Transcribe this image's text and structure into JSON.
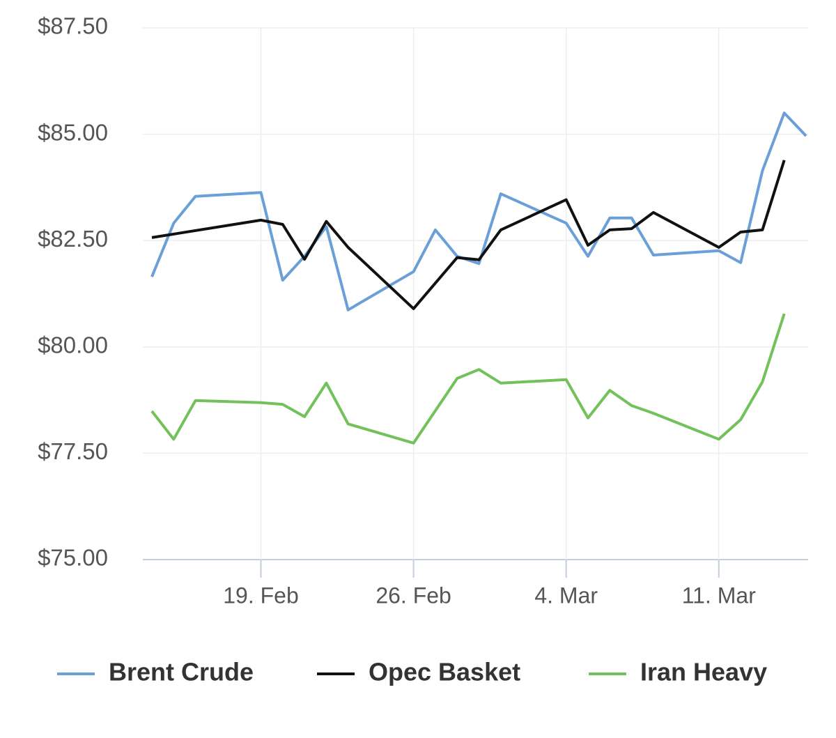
{
  "chart_data": {
    "type": "line",
    "ylim": [
      75,
      87.5
    ],
    "yticks": [
      {
        "value": 75,
        "label": "$75.00"
      },
      {
        "value": 77.5,
        "label": "$77.50"
      },
      {
        "value": 80,
        "label": "$80.00"
      },
      {
        "value": 82.5,
        "label": "$82.50"
      },
      {
        "value": 85,
        "label": "$85.00"
      },
      {
        "value": 87.5,
        "label": "$87.50"
      }
    ],
    "xticks": [
      "19. Feb",
      "26. Feb",
      "4. Mar",
      "11. Mar"
    ],
    "grid": true,
    "legend": "bottom",
    "series": [
      {
        "name": "Brent Crude",
        "color": "#6a9fd8",
        "x": [
          "14. Feb",
          "15. Feb",
          "16. Feb",
          "19. Feb",
          "20. Feb",
          "21. Feb",
          "22. Feb",
          "23. Feb",
          "26. Feb",
          "27. Feb",
          "28. Feb",
          "29. Feb",
          "1. Mar",
          "4. Mar",
          "5. Mar",
          "6. Mar",
          "7. Mar",
          "8. Mar",
          "11. Mar",
          "12. Mar",
          "13. Mar",
          "14. Mar",
          "15. Mar"
        ],
        "values": [
          81.65,
          82.91,
          83.54,
          83.63,
          81.57,
          82.13,
          82.83,
          80.87,
          81.77,
          82.75,
          82.13,
          81.96,
          83.6,
          82.91,
          82.13,
          83.03,
          83.03,
          82.16,
          82.26,
          81.98,
          84.14,
          85.5,
          84.96
        ]
      },
      {
        "name": "Opec Basket",
        "color": "#111111",
        "x": [
          "14. Feb",
          "19. Feb",
          "20. Feb",
          "21. Feb",
          "22. Feb",
          "23. Feb",
          "26. Feb",
          "28. Feb",
          "29. Feb",
          "1. Mar",
          "4. Mar",
          "5. Mar",
          "6. Mar",
          "7. Mar",
          "8. Mar",
          "11. Mar",
          "12. Mar",
          "13. Mar",
          "14. Mar"
        ],
        "values": [
          82.57,
          82.98,
          82.88,
          82.06,
          82.95,
          82.34,
          80.9,
          82.1,
          82.05,
          82.75,
          83.46,
          82.39,
          82.75,
          82.78,
          83.16,
          82.34,
          82.7,
          82.75,
          84.39
        ]
      },
      {
        "name": "Iran Heavy",
        "color": "#72c15a",
        "x": [
          "14. Feb",
          "15. Feb",
          "16. Feb",
          "19. Feb",
          "20. Feb",
          "21. Feb",
          "22. Feb",
          "23. Feb",
          "26. Feb",
          "27. Feb",
          "28. Feb",
          "29. Feb",
          "1. Mar",
          "4. Mar",
          "5. Mar",
          "6. Mar",
          "7. Mar",
          "8. Mar",
          "11. Mar",
          "12. Mar",
          "13. Mar",
          "14. Mar"
        ],
        "values": [
          78.49,
          77.83,
          78.74,
          78.69,
          78.65,
          78.36,
          79.15,
          78.19,
          77.74,
          78.5,
          79.26,
          79.47,
          79.15,
          79.23,
          78.33,
          78.98,
          78.62,
          78.44,
          77.83,
          78.29,
          79.18,
          80.78
        ]
      }
    ]
  }
}
